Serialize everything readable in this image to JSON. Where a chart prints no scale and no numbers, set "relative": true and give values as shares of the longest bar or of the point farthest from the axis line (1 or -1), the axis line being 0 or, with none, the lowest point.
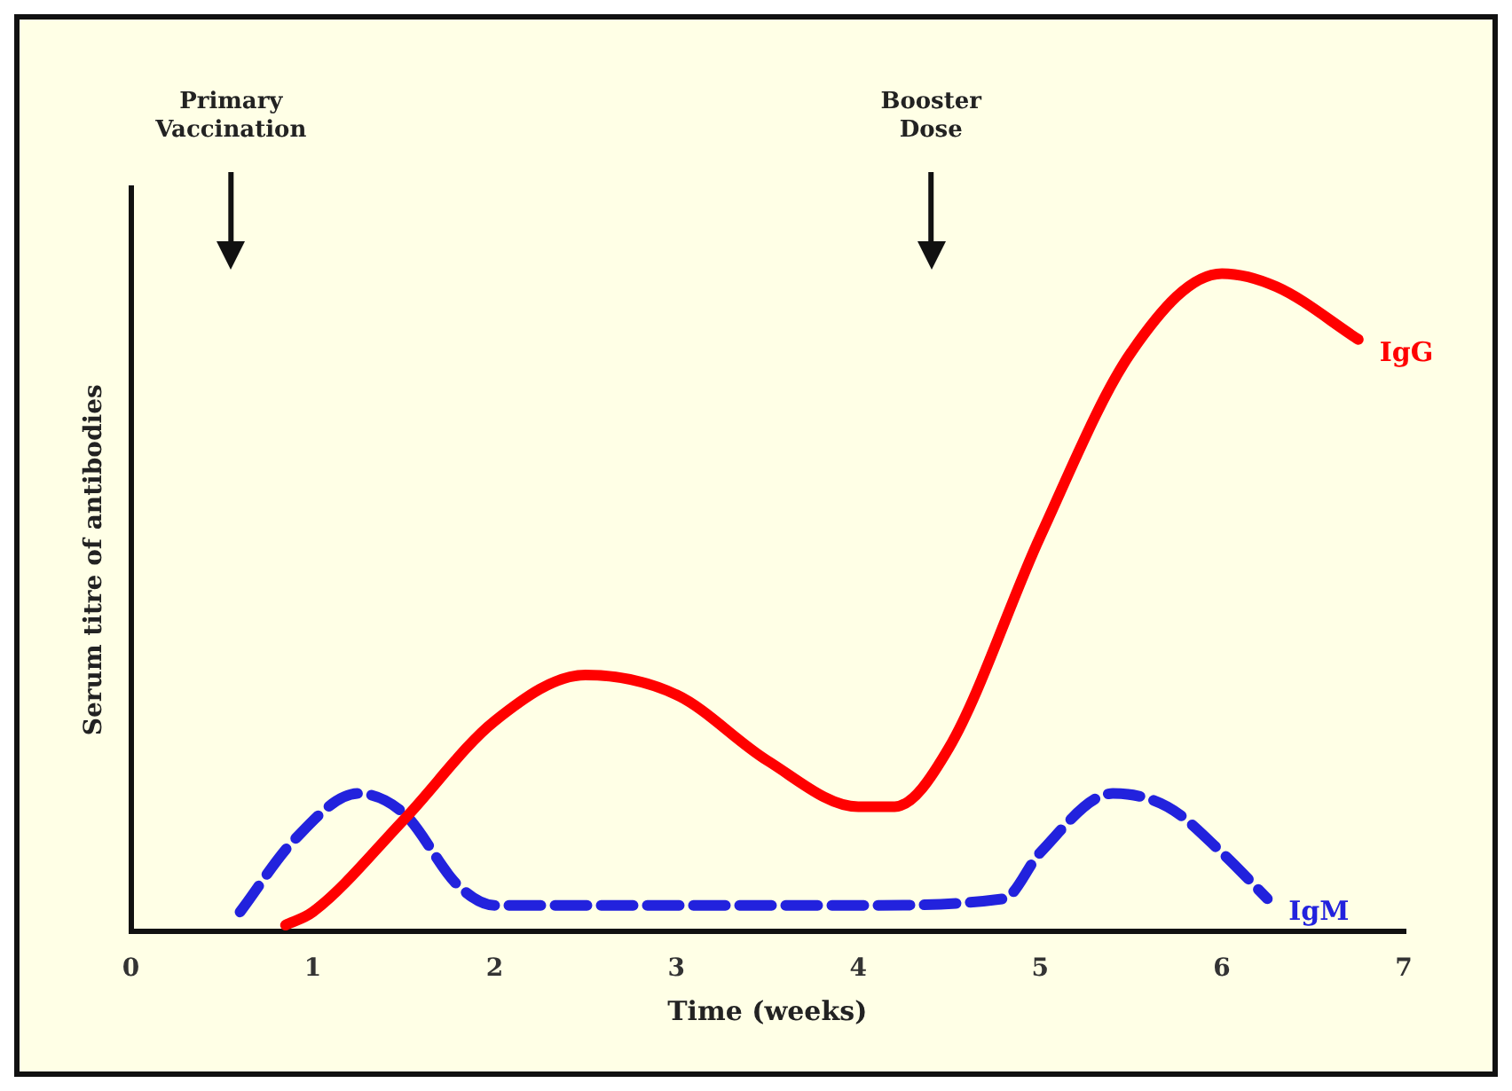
{
  "chart_data": {
    "type": "line",
    "relative": true,
    "xlabel": "Time (weeks)",
    "ylabel": "Serum titre of antibodies",
    "xlim": [
      0,
      7
    ],
    "xticks": [
      0,
      1,
      2,
      3,
      4,
      5,
      6,
      7
    ],
    "grid": false,
    "legend": false,
    "marker": "none",
    "ref_lines": [
      {
        "axis": "x",
        "value": 0.55,
        "label": "Primary Vaccination"
      },
      {
        "axis": "x",
        "value": 4.4,
        "label": "Booster Dose"
      }
    ],
    "series": [
      {
        "name": "IgG",
        "color": "#ff0000",
        "line_style": "solid",
        "x": [
          0.85,
          1,
          1.5,
          2,
          2.5,
          3,
          3.5,
          4,
          4.2,
          4.5,
          5,
          5.5,
          6,
          6.3,
          6.75
        ],
        "values": [
          0.01,
          0.03,
          0.17,
          0.32,
          0.39,
          0.36,
          0.26,
          0.19,
          0.19,
          0.28,
          0.6,
          0.88,
          1,
          0.98,
          0.9
        ]
      },
      {
        "name": "IgM",
        "color": "#2222dd",
        "line_style": "dashed",
        "x": [
          0.6,
          0.9,
          1.25,
          1.5,
          1.8,
          2,
          3,
          4,
          4.8,
          5,
          5.4,
          5.7,
          6,
          6.25
        ],
        "values": [
          0.03,
          0.14,
          0.21,
          0.18,
          0.07,
          0.04,
          0.04,
          0.04,
          0.05,
          0.12,
          0.21,
          0.19,
          0.12,
          0.05
        ]
      }
    ]
  }
}
